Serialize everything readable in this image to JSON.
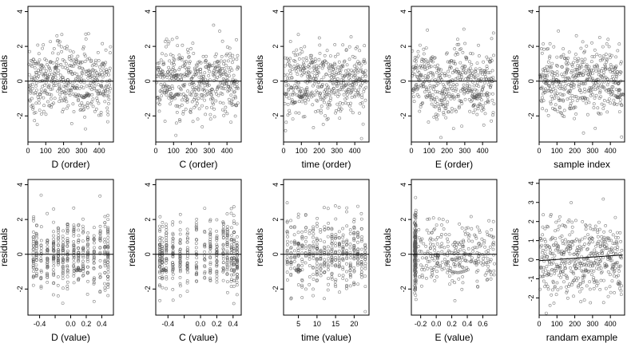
{
  "chart_data": [
    {
      "type": "scatter",
      "panel": "D-order",
      "xlabel": "D (order)",
      "ylabel": "residuals",
      "xlim": [
        0,
        480
      ],
      "ylim": [
        -3.5,
        4.3
      ],
      "grid": false,
      "hline": 0,
      "xticks": [
        0,
        100,
        200,
        300,
        400
      ],
      "xtick_labels": [
        "0",
        "100",
        "200",
        "300",
        "400"
      ],
      "yticks": [
        -2,
        0,
        2,
        4
      ],
      "ytick_labels": [
        "-2",
        "0",
        "2",
        "4"
      ],
      "n_points": 460,
      "pattern": "order"
    },
    {
      "type": "scatter",
      "panel": "C-order",
      "xlabel": "C (order)",
      "ylabel": "residuals",
      "xlim": [
        0,
        480
      ],
      "ylim": [
        -3.5,
        4.3
      ],
      "grid": false,
      "hline": 0,
      "xticks": [
        0,
        100,
        200,
        300,
        400
      ],
      "xtick_labels": [
        "0",
        "100",
        "200",
        "300",
        "400"
      ],
      "yticks": [
        -2,
        0,
        2,
        4
      ],
      "ytick_labels": [
        "-2",
        "0",
        "2",
        "4"
      ],
      "n_points": 460,
      "pattern": "order"
    },
    {
      "type": "scatter",
      "panel": "time-order",
      "xlabel": "time (order)",
      "ylabel": "residuals",
      "xlim": [
        0,
        480
      ],
      "ylim": [
        -3.5,
        4.3
      ],
      "grid": false,
      "hline": 0,
      "xticks": [
        0,
        100,
        200,
        300,
        400
      ],
      "xtick_labels": [
        "0",
        "100",
        "200",
        "300",
        "400"
      ],
      "yticks": [
        -2,
        0,
        2,
        4
      ],
      "ytick_labels": [
        "-2",
        "0",
        "2",
        "4"
      ],
      "n_points": 460,
      "pattern": "order"
    },
    {
      "type": "scatter",
      "panel": "E-order",
      "xlabel": "E (order)",
      "ylabel": "residuals",
      "xlim": [
        0,
        480
      ],
      "ylim": [
        -3.5,
        4.3
      ],
      "grid": false,
      "hline": 0,
      "xticks": [
        0,
        100,
        200,
        300,
        400
      ],
      "xtick_labels": [
        "0",
        "100",
        "200",
        "300",
        "400"
      ],
      "yticks": [
        -2,
        0,
        2,
        4
      ],
      "ytick_labels": [
        "-2",
        "0",
        "2",
        "4"
      ],
      "n_points": 460,
      "pattern": "order-wave"
    },
    {
      "type": "scatter",
      "panel": "sample-index",
      "xlabel": "sample index",
      "ylabel": "residuals",
      "xlim": [
        0,
        480
      ],
      "ylim": [
        -3.5,
        4.3
      ],
      "grid": false,
      "hline": 0,
      "xticks": [
        0,
        100,
        200,
        300,
        400
      ],
      "xtick_labels": [
        "0",
        "100",
        "200",
        "300",
        "400"
      ],
      "yticks": [
        -2,
        0,
        2,
        4
      ],
      "ytick_labels": [
        "-2",
        "0",
        "2",
        "4"
      ],
      "n_points": 460,
      "pattern": "order"
    },
    {
      "type": "scatter",
      "panel": "D-value",
      "xlabel": "D (value)",
      "ylabel": "residuals",
      "xlim": [
        -0.55,
        0.55
      ],
      "ylim": [
        -3.5,
        4.3
      ],
      "grid": false,
      "hline": 0,
      "xticks": [
        -0.4,
        -0.2,
        0.0,
        0.2,
        0.4
      ],
      "xtick_labels": [
        "-0.4",
        "",
        "0.0",
        "0.2",
        "0.4"
      ],
      "yticks": [
        -2,
        0,
        2,
        4
      ],
      "ytick_labels": [
        "-2",
        "0",
        "2",
        "4"
      ],
      "n_points": 460,
      "pattern": "columns",
      "x_levels": [
        -0.48,
        -0.44,
        -0.38,
        -0.3,
        -0.22,
        -0.16,
        -0.1,
        -0.04,
        0.04,
        0.1,
        0.16,
        0.22,
        0.3,
        0.38,
        0.44,
        0.48
      ]
    },
    {
      "type": "scatter",
      "panel": "C-value",
      "xlabel": "C (value)",
      "ylabel": "residuals",
      "xlim": [
        -0.55,
        0.5
      ],
      "ylim": [
        -3.5,
        4.3
      ],
      "grid": false,
      "hline": 0,
      "xticks": [
        -0.4,
        -0.2,
        0.0,
        0.2,
        0.4
      ],
      "xtick_labels": [
        "-0.4",
        "",
        "0.0",
        "0.2",
        "0.4"
      ],
      "yticks": [
        -2,
        0,
        2,
        4
      ],
      "ytick_labels": [
        "-2",
        "0",
        "2",
        "4"
      ],
      "n_points": 460,
      "pattern": "columns",
      "x_levels": [
        -0.5,
        -0.47,
        -0.42,
        -0.34,
        -0.25,
        -0.16,
        -0.05,
        0.05,
        0.12,
        0.2,
        0.28,
        0.33,
        0.38,
        0.41,
        0.45
      ]
    },
    {
      "type": "scatter",
      "panel": "time-value",
      "xlabel": "time (value)",
      "ylabel": "residuals",
      "xlim": [
        1,
        24
      ],
      "ylim": [
        -3.5,
        4.3
      ],
      "grid": false,
      "hline": 0,
      "xticks": [
        5,
        10,
        15,
        20
      ],
      "xtick_labels": [
        "5",
        "10",
        "15",
        "20"
      ],
      "yticks": [
        -2,
        0,
        2,
        4
      ],
      "ytick_labels": [
        "-2",
        "0",
        "2",
        "4"
      ],
      "n_points": 460,
      "pattern": "columns",
      "x_levels": [
        2,
        3,
        4,
        5,
        6,
        7,
        8,
        9,
        10,
        11,
        12,
        13,
        14,
        15,
        16,
        17,
        18,
        19,
        20,
        21,
        22,
        23,
        24
      ]
    },
    {
      "type": "scatter",
      "panel": "E-value",
      "xlabel": "E (value)",
      "ylabel": "residuals",
      "xlim": [
        -0.32,
        0.78
      ],
      "ylim": [
        -3.5,
        4.3
      ],
      "grid": false,
      "hline": 0,
      "xticks": [
        -0.2,
        0.0,
        0.2,
        0.4,
        0.6
      ],
      "xtick_labels": [
        "-0.2",
        "0.0",
        "0.2",
        "0.4",
        "0.6"
      ],
      "yticks": [
        -2,
        0,
        2,
        4
      ],
      "ytick_labels": [
        "-2",
        "0",
        "2",
        "4"
      ],
      "n_points": 460,
      "pattern": "e-value"
    },
    {
      "type": "scatter",
      "panel": "random-example",
      "xlabel": "randam example",
      "ylabel": "residuals",
      "xlim": [
        0,
        480
      ],
      "ylim": [
        -2.9,
        4.2
      ],
      "grid": false,
      "trend": {
        "start": [
          0,
          -0.05
        ],
        "end": [
          470,
          0.25
        ]
      },
      "xticks": [
        0,
        100,
        200,
        300,
        400
      ],
      "xtick_labels": [
        "0",
        "100",
        "200",
        "300",
        "400"
      ],
      "yticks": [
        -2,
        -1,
        0,
        1,
        2,
        3,
        4
      ],
      "ytick_labels": [
        "-2",
        "-1",
        "0",
        "1",
        "2",
        "3",
        "4"
      ],
      "n_points": 460,
      "pattern": "random"
    }
  ],
  "style": {
    "point_color": "#555555",
    "line_color": "#000000",
    "frame_color": "#000000"
  }
}
